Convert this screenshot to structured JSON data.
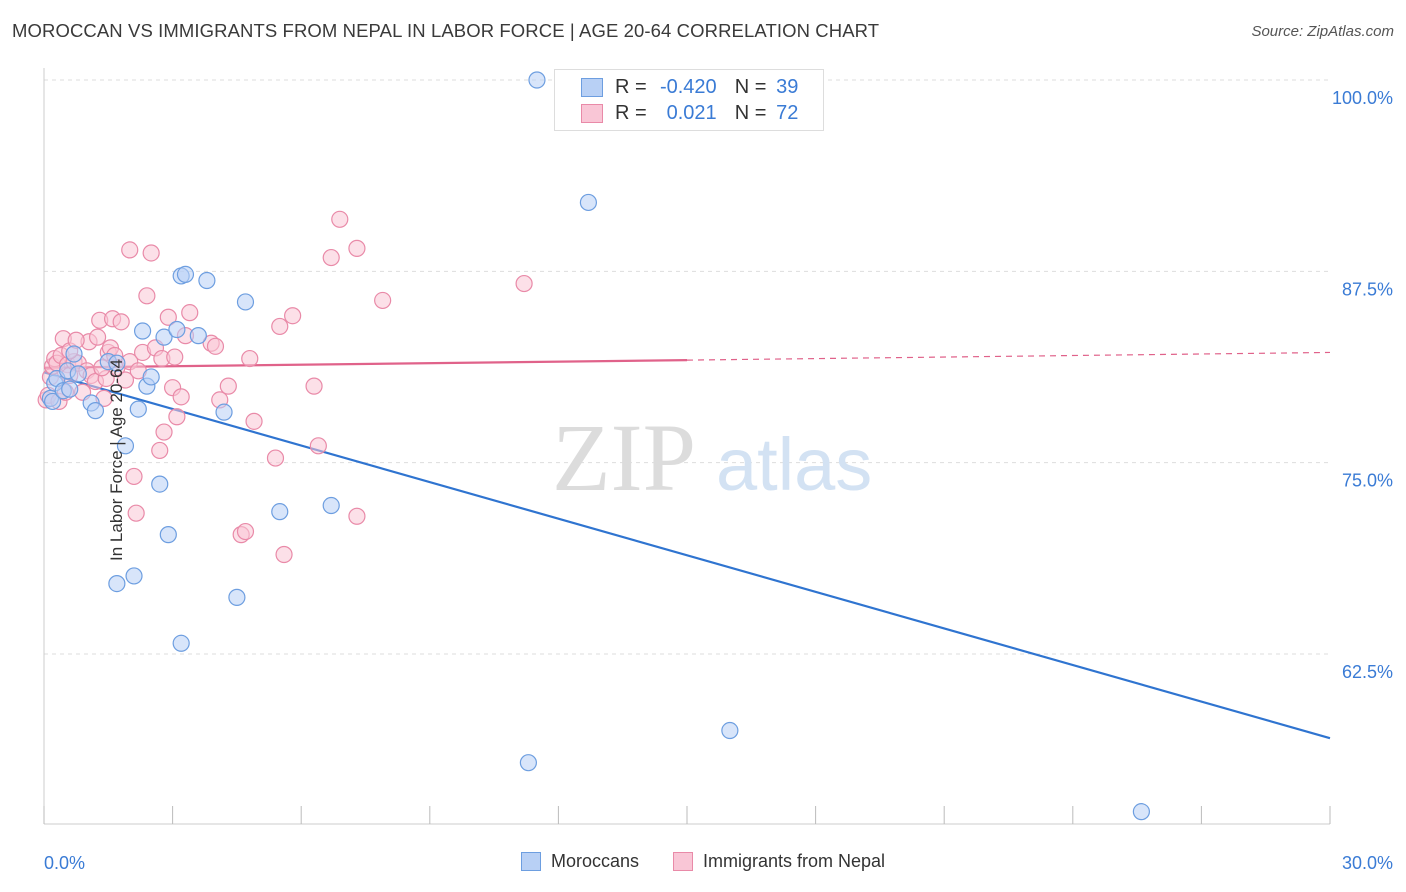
{
  "title": "MOROCCAN VS IMMIGRANTS FROM NEPAL IN LABOR FORCE | AGE 20-64 CORRELATION CHART",
  "source": "Source: ZipAtlas.com",
  "watermark": {
    "zip": "ZIP",
    "atlas": "atlas"
  },
  "legend": {
    "r_label": "R =",
    "n_label": "N =",
    "rows": [
      {
        "r": "-0.420",
        "n": "39",
        "fill": "#b8d0f5",
        "stroke": "#6d9ee0"
      },
      {
        "r": "0.021",
        "n": "72",
        "fill": "#f9c6d6",
        "stroke": "#e98aa8"
      }
    ]
  },
  "chart_data": {
    "type": "scatter",
    "title": "MOROCCAN VS IMMIGRANTS FROM NEPAL IN LABOR FORCE | AGE 20-64 CORRELATION CHART",
    "xlabel": "",
    "ylabel": "In Labor Force | Age 20-64",
    "xlim": [
      0,
      30
    ],
    "ylim": [
      52,
      101.5
    ],
    "x_ticks": [
      {
        "value": 0,
        "label": "0.0%"
      },
      {
        "value": 30,
        "label": "30.0%"
      }
    ],
    "y_ticks": [
      {
        "value": 100,
        "label": "100.0%"
      },
      {
        "value": 87.5,
        "label": "87.5%"
      },
      {
        "value": 75,
        "label": "75.0%"
      },
      {
        "value": 62.5,
        "label": "62.5%"
      }
    ],
    "grid": true,
    "legend_position": "top-center",
    "series": [
      {
        "name": "Moroccans",
        "color": "#6d9ee0",
        "fill": "#b8d0f5",
        "trend": {
          "x": [
            0,
            30
          ],
          "y": [
            80.9,
            57.0
          ],
          "color": "#2f74d0"
        },
        "points": [
          [
            0.15,
            79.2
          ],
          [
            0.2,
            79.0
          ],
          [
            0.25,
            80.2
          ],
          [
            0.3,
            80.5
          ],
          [
            0.45,
            79.7
          ],
          [
            0.55,
            81.0
          ],
          [
            0.6,
            79.8
          ],
          [
            0.7,
            82.1
          ],
          [
            0.8,
            80.8
          ],
          [
            1.1,
            78.9
          ],
          [
            1.2,
            78.4
          ],
          [
            1.5,
            81.6
          ],
          [
            1.7,
            81.5
          ],
          [
            1.9,
            76.1
          ],
          [
            2.2,
            78.5
          ],
          [
            2.3,
            83.6
          ],
          [
            2.4,
            80.0
          ],
          [
            2.5,
            80.6
          ],
          [
            2.7,
            73.6
          ],
          [
            2.8,
            83.2
          ],
          [
            2.9,
            70.3
          ],
          [
            3.1,
            83.7
          ],
          [
            3.2,
            87.2
          ],
          [
            3.3,
            87.3
          ],
          [
            3.6,
            83.3
          ],
          [
            3.8,
            86.9
          ],
          [
            4.2,
            78.3
          ],
          [
            4.5,
            66.2
          ],
          [
            4.7,
            85.5
          ],
          [
            5.5,
            71.8
          ],
          [
            6.7,
            72.2
          ],
          [
            11.5,
            100.0
          ],
          [
            12.7,
            92.0
          ],
          [
            16.0,
            57.5
          ],
          [
            11.3,
            55.4
          ],
          [
            25.6,
            52.2
          ],
          [
            1.7,
            67.1
          ],
          [
            2.1,
            67.6
          ],
          [
            3.2,
            63.2
          ]
        ]
      },
      {
        "name": "Immigrants from Nepal",
        "color": "#e98aa8",
        "fill": "#f9c6d6",
        "trend": {
          "x": [
            0,
            15
          ],
          "y": [
            81.2,
            81.7
          ],
          "x_dashed_end": 30,
          "y_dashed_end": 82.2,
          "color": "#e0628a"
        },
        "points": [
          [
            0.05,
            79.1
          ],
          [
            0.1,
            79.4
          ],
          [
            0.15,
            80.6
          ],
          [
            0.2,
            81.3
          ],
          [
            0.25,
            81.8
          ],
          [
            0.3,
            81.5
          ],
          [
            0.4,
            82.0
          ],
          [
            0.45,
            83.1
          ],
          [
            0.55,
            81.4
          ],
          [
            0.6,
            80.7
          ],
          [
            0.7,
            81.6
          ],
          [
            0.8,
            81.5
          ],
          [
            0.9,
            79.6
          ],
          [
            1.0,
            81.0
          ],
          [
            1.05,
            82.9
          ],
          [
            1.1,
            80.7
          ],
          [
            1.2,
            80.3
          ],
          [
            1.3,
            84.3
          ],
          [
            1.4,
            79.2
          ],
          [
            1.5,
            82.2
          ],
          [
            1.55,
            82.5
          ],
          [
            1.6,
            84.4
          ],
          [
            1.65,
            82.0
          ],
          [
            1.7,
            81.2
          ],
          [
            1.8,
            84.2
          ],
          [
            1.9,
            80.4
          ],
          [
            2.0,
            81.6
          ],
          [
            2.0,
            88.9
          ],
          [
            2.1,
            74.1
          ],
          [
            2.15,
            71.7
          ],
          [
            2.3,
            82.2
          ],
          [
            2.4,
            85.9
          ],
          [
            2.5,
            88.7
          ],
          [
            2.6,
            82.5
          ],
          [
            2.7,
            75.8
          ],
          [
            2.75,
            81.8
          ],
          [
            2.8,
            77.0
          ],
          [
            2.9,
            84.5
          ],
          [
            3.0,
            79.9
          ],
          [
            3.1,
            78.0
          ],
          [
            3.2,
            79.3
          ],
          [
            3.3,
            83.3
          ],
          [
            3.4,
            84.8
          ],
          [
            3.9,
            82.8
          ],
          [
            4.0,
            82.6
          ],
          [
            4.1,
            79.1
          ],
          [
            4.3,
            80.0
          ],
          [
            4.6,
            70.3
          ],
          [
            4.7,
            70.5
          ],
          [
            4.8,
            81.8
          ],
          [
            4.9,
            77.7
          ],
          [
            5.4,
            75.3
          ],
          [
            5.5,
            83.9
          ],
          [
            5.6,
            69.0
          ],
          [
            5.8,
            84.6
          ],
          [
            6.3,
            80.0
          ],
          [
            6.4,
            76.1
          ],
          [
            6.7,
            88.4
          ],
          [
            6.9,
            90.9
          ],
          [
            7.3,
            89.0
          ],
          [
            7.3,
            71.5
          ],
          [
            7.9,
            85.6
          ],
          [
            11.2,
            86.7
          ],
          [
            0.6,
            82.3
          ],
          [
            1.25,
            83.2
          ],
          [
            0.35,
            79.0
          ],
          [
            0.5,
            79.6
          ],
          [
            1.45,
            80.5
          ],
          [
            2.2,
            81.0
          ],
          [
            0.75,
            83.0
          ],
          [
            1.35,
            81.2
          ],
          [
            3.05,
            81.9
          ]
        ]
      }
    ]
  }
}
